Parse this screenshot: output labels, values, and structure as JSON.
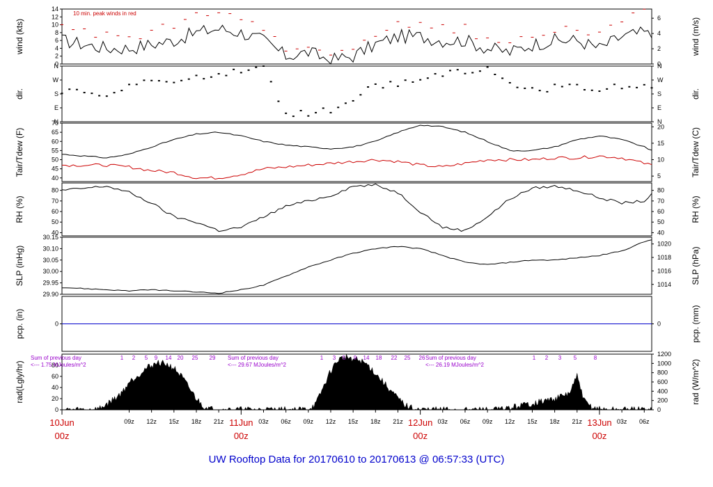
{
  "chart_data": {
    "type": "line",
    "title": "UW Rooftop Data for 20170610  to  20170613 @ 06:57:33  (UTC)",
    "x_range_hours": [
      0,
      79
    ],
    "x_ticks": [
      "09z",
      "12z",
      "15z",
      "18z",
      "21z",
      "03z",
      "06z",
      "09z",
      "12z",
      "15z",
      "18z",
      "21z",
      "03z",
      "06z",
      "09z",
      "12z",
      "15z",
      "18z",
      "21z",
      "03z",
      "06z"
    ],
    "day_labels": [
      {
        "date": "10Jun",
        "time": "00z"
      },
      {
        "date": "11Jun",
        "time": "00z"
      },
      {
        "date": "12Jun",
        "time": "00z"
      },
      {
        "date": "13Jun",
        "time": "00z"
      }
    ],
    "panels": [
      {
        "id": "wind",
        "ylabel_left": "wind (kts)",
        "ylabel_right": "wind (m/s)",
        "ylim": [
          0,
          14
        ],
        "left_ticks": [
          "0",
          "2",
          "4",
          "6",
          "8",
          "10",
          "12",
          "14"
        ],
        "right_ticks": [
          "0",
          "2",
          "4",
          "6"
        ],
        "note": "10 min. peak winds in red",
        "series": [
          {
            "name": "wind speed",
            "color": "#000000",
            "x": [
              0,
              3,
              6,
              9,
              12,
              15,
              18,
              21,
              24,
              27,
              30,
              33,
              36,
              39,
              42,
              45,
              48,
              51,
              54,
              57,
              60,
              63,
              66,
              69,
              72,
              75,
              78,
              79
            ],
            "values": [
              6,
              5,
              4,
              4,
              5,
              6,
              8,
              9,
              8,
              6,
              2,
              3,
              1,
              2,
              5,
              7,
              7,
              6,
              6,
              4,
              3,
              5,
              6,
              6,
              4,
              7,
              8,
              7
            ]
          },
          {
            "name": "10 min. peak winds",
            "color": "#cc0000",
            "x": [
              0,
              3,
              6,
              9,
              12,
              15,
              18,
              21,
              24,
              27,
              30,
              33,
              36,
              39,
              42,
              45,
              48,
              51,
              54,
              57,
              60,
              63,
              66,
              69,
              72,
              75,
              78,
              79
            ],
            "values": [
              9,
              8,
              7,
              7,
              8,
              10,
              12,
              13,
              12,
              9,
              4,
              5,
              2,
              3,
              8,
              10,
              11,
              9,
              9,
              6,
              5,
              8,
              9,
              9,
              7,
              11,
              13,
              12
            ]
          }
        ]
      },
      {
        "id": "dir",
        "ylabel_left": "dir.",
        "ylabel_right": "dir.",
        "ylim": [
          0,
          360
        ],
        "left_ticks": [
          "N",
          "E",
          "S",
          "W",
          "N"
        ],
        "right_ticks": [
          "N",
          "E",
          "S",
          "W",
          "N"
        ],
        "series": [
          {
            "name": "wind direction",
            "color": "#000000",
            "x": [
              0,
              3,
              6,
              9,
              12,
              15,
              18,
              21,
              24,
              27,
              30,
              33,
              36,
              39,
              42,
              45,
              48,
              51,
              54,
              57,
              60,
              63,
              66,
              69,
              72,
              75,
              78,
              79
            ],
            "values": [
              200,
              210,
              170,
              240,
              255,
              260,
              285,
              320,
              330,
              350,
              40,
              60,
              80,
              150,
              230,
              250,
              270,
              300,
              335,
              340,
              230,
              200,
              220,
              245,
              190,
              240,
              225,
              215
            ]
          }
        ]
      },
      {
        "id": "temp",
        "ylabel_left": "Tair/Tdew (F)",
        "ylabel_right": "Tair/Tdew (C)",
        "ylim": [
          38,
          70
        ],
        "left_ticks": [
          "40",
          "45",
          "50",
          "55",
          "60",
          "65",
          "70"
        ],
        "right_ticks": [
          "5",
          "10",
          "15",
          "20"
        ],
        "series": [
          {
            "name": "Tair",
            "color": "#000000",
            "x": [
              0,
              3,
              6,
              9,
              12,
              15,
              18,
              21,
              24,
              27,
              30,
              33,
              36,
              39,
              42,
              45,
              48,
              51,
              54,
              57,
              60,
              63,
              66,
              69,
              72,
              75,
              78,
              79
            ],
            "values": [
              53,
              52,
              51,
              53,
              57,
              61,
              64,
              65,
              63,
              60,
              58,
              57,
              56,
              57,
              60,
              65,
              69,
              68,
              65,
              60,
              55,
              55,
              57,
              61,
              63,
              61,
              57,
              55
            ]
          },
          {
            "name": "Tdew",
            "color": "#cc0000",
            "x": [
              0,
              3,
              6,
              9,
              12,
              15,
              18,
              21,
              24,
              27,
              30,
              33,
              36,
              39,
              42,
              45,
              48,
              51,
              54,
              57,
              60,
              63,
              66,
              69,
              72,
              75,
              78,
              79
            ],
            "values": [
              47,
              47,
              47,
              46,
              44,
              43,
              40,
              40,
              42,
              45,
              46,
              47,
              48,
              49,
              50,
              49,
              47,
              46,
              48,
              50,
              50,
              50,
              51,
              51,
              52,
              51,
              48,
              47
            ]
          }
        ]
      },
      {
        "id": "rh",
        "ylabel_left": "RH (%)",
        "ylabel_right": "RH (%)",
        "ylim": [
          37,
          87
        ],
        "left_ticks": [
          "40",
          "50",
          "60",
          "70",
          "80"
        ],
        "right_ticks": [
          "40",
          "50",
          "60",
          "70",
          "80"
        ],
        "series": [
          {
            "name": "RH",
            "color": "#000000",
            "x": [
              0,
              3,
              6,
              9,
              12,
              15,
              18,
              21,
              24,
              27,
              30,
              33,
              36,
              39,
              42,
              45,
              48,
              51,
              54,
              57,
              60,
              63,
              66,
              69,
              72,
              75,
              78,
              79
            ],
            "values": [
              80,
              82,
              84,
              78,
              68,
              55,
              50,
              42,
              45,
              55,
              65,
              70,
              75,
              84,
              85,
              78,
              60,
              45,
              42,
              55,
              72,
              82,
              84,
              80,
              73,
              68,
              70,
              76
            ]
          }
        ]
      },
      {
        "id": "slp",
        "ylabel_left": "SLP (inHg)",
        "ylabel_right": "SLP (hPa)",
        "ylim": [
          29.9,
          30.15
        ],
        "left_ticks": [
          "29.90",
          "29.95",
          "30.00",
          "30.05",
          "30.10",
          "30.15"
        ],
        "right_ticks": [
          "1014",
          "1016",
          "1018",
          "1020"
        ],
        "series": [
          {
            "name": "SLP",
            "color": "#000000",
            "x": [
              0,
              3,
              6,
              9,
              12,
              15,
              18,
              21,
              24,
              27,
              30,
              33,
              36,
              39,
              42,
              45,
              48,
              51,
              54,
              57,
              60,
              63,
              66,
              69,
              72,
              75,
              78,
              79
            ],
            "values": [
              29.93,
              29.925,
              29.92,
              29.915,
              29.92,
              29.915,
              29.91,
              29.905,
              29.92,
              29.94,
              29.98,
              30.02,
              30.05,
              30.08,
              30.1,
              30.11,
              30.1,
              30.07,
              30.04,
              30.03,
              30.04,
              30.05,
              30.05,
              30.06,
              30.07,
              30.09,
              30.13,
              30.14
            ]
          }
        ]
      },
      {
        "id": "pcp",
        "ylabel_left": "pcp. (in)",
        "ylabel_right": "pcp. (mm)",
        "ylim": [
          -1,
          1
        ],
        "left_ticks": [
          "0"
        ],
        "right_ticks": [
          "0"
        ],
        "series": [
          {
            "name": "precipitation",
            "color": "#0000cc",
            "x": [
              0,
              79
            ],
            "values": [
              0,
              0
            ]
          }
        ]
      },
      {
        "id": "rad",
        "ylabel_left": "rad(Lgly/hr)",
        "ylabel_right": "rad (W/m^2)",
        "ylim": [
          0,
          100
        ],
        "left_ticks": [
          "0",
          "20",
          "40",
          "60",
          "80"
        ],
        "right_ticks": [
          "0",
          "200",
          "400",
          "600",
          "800",
          "1000",
          "1200"
        ],
        "annotations": [
          {
            "line1": "Sum of previous day",
            "line2": "<--- 1.75 MJoules/m^2"
          },
          {
            "line1": "Sum of previous day",
            "line2": "<--- 29.67 MJoules/m^2"
          },
          {
            "line1": "Sum of previous day",
            "line2": "<--- 26.19 MJoules/m^2"
          }
        ],
        "hour_marks": [
          "1",
          "2",
          "5",
          "9",
          "14",
          "20",
          "25",
          "29",
          "1",
          "3",
          "5",
          "9",
          "14",
          "18",
          "22",
          "25",
          "26",
          "1",
          "2",
          "3",
          "5",
          "8"
        ],
        "series": [
          {
            "name": "solar radiation",
            "color": "#000000",
            "fill": true,
            "x": [
              0,
              4,
              5,
              6,
              7,
              8,
              9,
              10,
              11,
              12,
              13,
              14,
              15,
              16,
              17,
              18,
              19,
              20,
              21,
              24,
              32,
              33,
              34,
              35,
              36,
              37,
              38,
              39,
              40,
              41,
              42,
              43,
              44,
              45,
              46,
              47,
              48,
              49,
              50,
              51,
              58,
              59,
              60,
              61,
              62,
              63,
              64,
              65,
              66,
              67,
              68,
              69,
              70,
              71,
              72,
              73,
              74,
              75,
              79
            ],
            "values": [
              0,
              0,
              2,
              10,
              20,
              30,
              50,
              60,
              72,
              80,
              85,
              82,
              75,
              60,
              40,
              20,
              6,
              1,
              0,
              0,
              0,
              2,
              10,
              40,
              70,
              90,
              95,
              92,
              88,
              80,
              65,
              50,
              35,
              20,
              8,
              2,
              0,
              0,
              0,
              0,
              0,
              1,
              3,
              6,
              9,
              11,
              14,
              17,
              20,
              24,
              30,
              60,
              15,
              4,
              1,
              0,
              0,
              0,
              0
            ]
          }
        ]
      }
    ]
  }
}
